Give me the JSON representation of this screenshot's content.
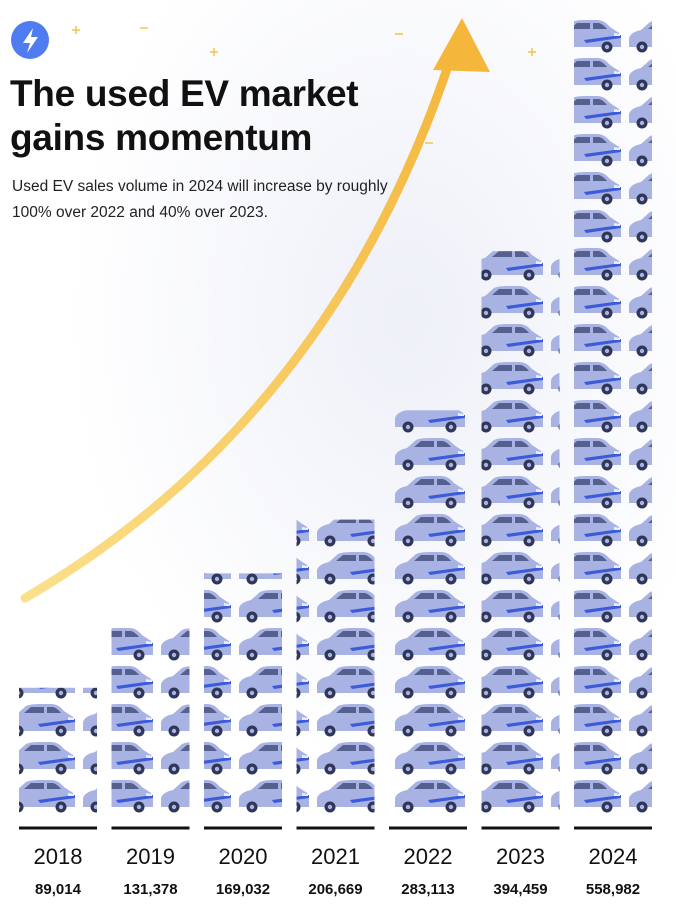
{
  "chart_data": {
    "type": "pictograph",
    "title": "The used EV market gains momentum",
    "subtitle": "Used EV sales volume in 2024 will increase by roughly 100% over 2022 and 40% over 2023.",
    "categories": [
      "2018",
      "2019",
      "2020",
      "2021",
      "2022",
      "2023",
      "2024"
    ],
    "values": [
      89014,
      131378,
      169032,
      206669,
      283113,
      394459,
      558982
    ],
    "value_labels": [
      "89,014",
      "131,378",
      "169,032",
      "206,669",
      "283,113",
      "394,459",
      "558,982"
    ],
    "color": "#a9b3e3"
  }
}
